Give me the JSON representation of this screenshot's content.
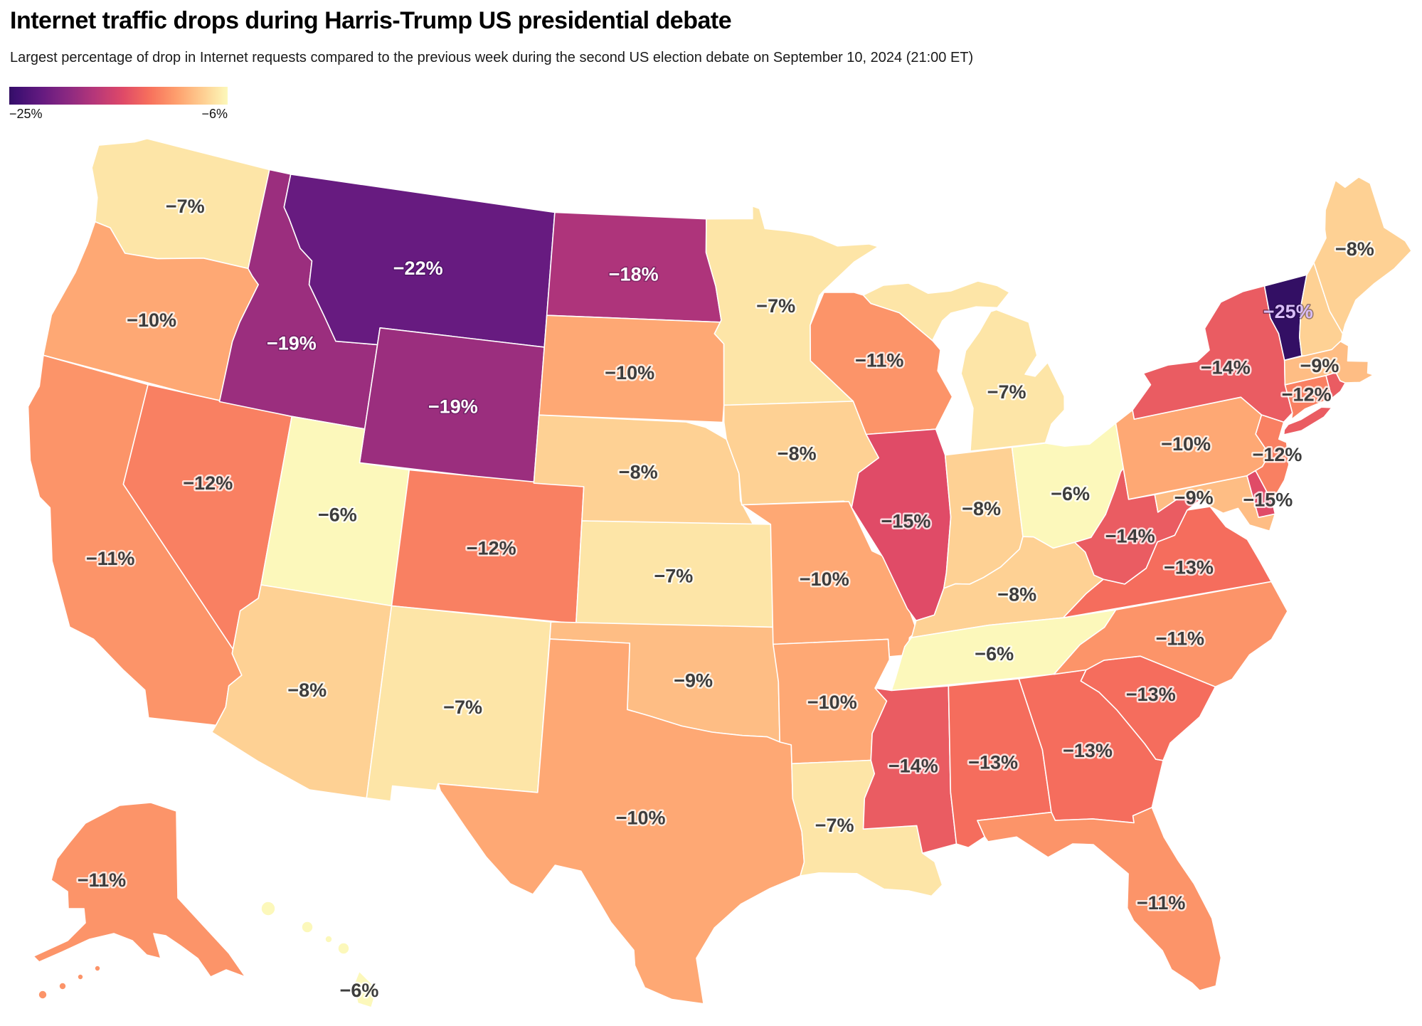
{
  "title": "Internet traffic drops during Harris-Trump US presidential debate",
  "subtitle": "Largest percentage of drop in Internet requests compared to the previous week during the second US election debate on September 10, 2024 (21:00 ET)",
  "legend": {
    "min_label": "−25%",
    "max_label": "−6%"
  },
  "colors": {
    "background": "#ffffff",
    "state_border": "#ffffff",
    "label_text_dark": "#3d3d3d",
    "label_text_light": "#ffffff",
    "vermont_label_text": "#d9bdf8",
    "scale_dark_end": "#331064",
    "scale_light_end": "#fcf8ba"
  },
  "chart_data": {
    "type": "heatmap",
    "subtype": "us-state-choropleth",
    "metric": "Largest % drop in Internet requests vs previous week",
    "value_domain": [
      -25,
      -6
    ],
    "legend_range_labels": [
      "−25%",
      "−6%"
    ],
    "color_scale_stops_light_to_dark": [
      "#fcfdbf",
      "#fecf92",
      "#fe9f6d",
      "#f7705c",
      "#de4968",
      "#b73779",
      "#8c2981",
      "#641a80",
      "#3b0f70",
      "#140e36"
    ],
    "states": [
      {
        "state": "Washington",
        "abbr": "WA",
        "value": -7,
        "label": "−7%"
      },
      {
        "state": "Oregon",
        "abbr": "OR",
        "value": -10,
        "label": "−10%"
      },
      {
        "state": "California",
        "abbr": "CA",
        "value": -11,
        "label": "−11%"
      },
      {
        "state": "Nevada",
        "abbr": "NV",
        "value": -12,
        "label": "−12%"
      },
      {
        "state": "Idaho",
        "abbr": "ID",
        "value": -19,
        "label": "−19%"
      },
      {
        "state": "Montana",
        "abbr": "MT",
        "value": -22,
        "label": "−22%"
      },
      {
        "state": "Wyoming",
        "abbr": "WY",
        "value": -19,
        "label": "−19%"
      },
      {
        "state": "Utah",
        "abbr": "UT",
        "value": -6,
        "label": "−6%"
      },
      {
        "state": "Arizona",
        "abbr": "AZ",
        "value": -8,
        "label": "−8%"
      },
      {
        "state": "Colorado",
        "abbr": "CO",
        "value": -12,
        "label": "−12%"
      },
      {
        "state": "New Mexico",
        "abbr": "NM",
        "value": -7,
        "label": "−7%"
      },
      {
        "state": "North Dakota",
        "abbr": "ND",
        "value": -18,
        "label": "−18%"
      },
      {
        "state": "South Dakota",
        "abbr": "SD",
        "value": -10,
        "label": "−10%"
      },
      {
        "state": "Nebraska",
        "abbr": "NE",
        "value": -8,
        "label": "−8%"
      },
      {
        "state": "Kansas",
        "abbr": "KS",
        "value": -7,
        "label": "−7%"
      },
      {
        "state": "Oklahoma",
        "abbr": "OK",
        "value": -9,
        "label": "−9%"
      },
      {
        "state": "Texas",
        "abbr": "TX",
        "value": -10,
        "label": "−10%"
      },
      {
        "state": "Minnesota",
        "abbr": "MN",
        "value": -7,
        "label": "−7%"
      },
      {
        "state": "Iowa",
        "abbr": "IA",
        "value": -8,
        "label": "−8%"
      },
      {
        "state": "Missouri",
        "abbr": "MO",
        "value": -10,
        "label": "−10%"
      },
      {
        "state": "Arkansas",
        "abbr": "AR",
        "value": -10,
        "label": "−10%"
      },
      {
        "state": "Louisiana",
        "abbr": "LA",
        "value": -7,
        "label": "−7%"
      },
      {
        "state": "Wisconsin",
        "abbr": "WI",
        "value": -11,
        "label": "−11%"
      },
      {
        "state": "Illinois",
        "abbr": "IL",
        "value": -15,
        "label": "−15%"
      },
      {
        "state": "Michigan",
        "abbr": "MI",
        "value": -7,
        "label": "−7%"
      },
      {
        "state": "Indiana",
        "abbr": "IN",
        "value": -8,
        "label": "−8%"
      },
      {
        "state": "Ohio",
        "abbr": "OH",
        "value": -6,
        "label": "−6%"
      },
      {
        "state": "Kentucky",
        "abbr": "KY",
        "value": -8,
        "label": "−8%"
      },
      {
        "state": "Tennessee",
        "abbr": "TN",
        "value": -6,
        "label": "−6%"
      },
      {
        "state": "Mississippi",
        "abbr": "MS",
        "value": -14,
        "label": "−14%"
      },
      {
        "state": "Alabama",
        "abbr": "AL",
        "value": -13,
        "label": "−13%"
      },
      {
        "state": "Georgia",
        "abbr": "GA",
        "value": -13,
        "label": "−13%"
      },
      {
        "state": "Florida",
        "abbr": "FL",
        "value": -11,
        "label": "−11%"
      },
      {
        "state": "South Carolina",
        "abbr": "SC",
        "value": -13,
        "label": "−13%"
      },
      {
        "state": "North Carolina",
        "abbr": "NC",
        "value": -11,
        "label": "−11%"
      },
      {
        "state": "Virginia",
        "abbr": "VA",
        "value": -13,
        "label": "−13%"
      },
      {
        "state": "West Virginia",
        "abbr": "WV",
        "value": -14,
        "label": "−14%"
      },
      {
        "state": "Maryland",
        "abbr": "MD",
        "value": -9,
        "label": "−9%"
      },
      {
        "state": "Delaware",
        "abbr": "DE",
        "value": -15,
        "label": "−15%"
      },
      {
        "state": "New Jersey",
        "abbr": "NJ",
        "value": -12,
        "label": "−12%"
      },
      {
        "state": "Pennsylvania",
        "abbr": "PA",
        "value": -10,
        "label": "−10%"
      },
      {
        "state": "New York",
        "abbr": "NY",
        "value": -14,
        "label": "−14%"
      },
      {
        "state": "Connecticut",
        "abbr": "CT",
        "value": -12,
        "label": "−12%"
      },
      {
        "state": "Rhode Island",
        "abbr": "RI",
        "value": null,
        "label": null,
        "fill_estimate": "#ea5c62"
      },
      {
        "state": "Massachusetts",
        "abbr": "MA",
        "value": -9,
        "label": "−9%"
      },
      {
        "state": "Vermont",
        "abbr": "VT",
        "value": -25,
        "label": "−25%"
      },
      {
        "state": "New Hampshire",
        "abbr": "NH",
        "value": null,
        "label": null,
        "fill_estimate": "#fed194"
      },
      {
        "state": "Maine",
        "abbr": "ME",
        "value": -8,
        "label": "−8%"
      },
      {
        "state": "Alaska",
        "abbr": "AK",
        "value": -11,
        "label": "−11%"
      },
      {
        "state": "Hawaii",
        "abbr": "HI",
        "value": -6,
        "label": "−6%"
      }
    ]
  }
}
